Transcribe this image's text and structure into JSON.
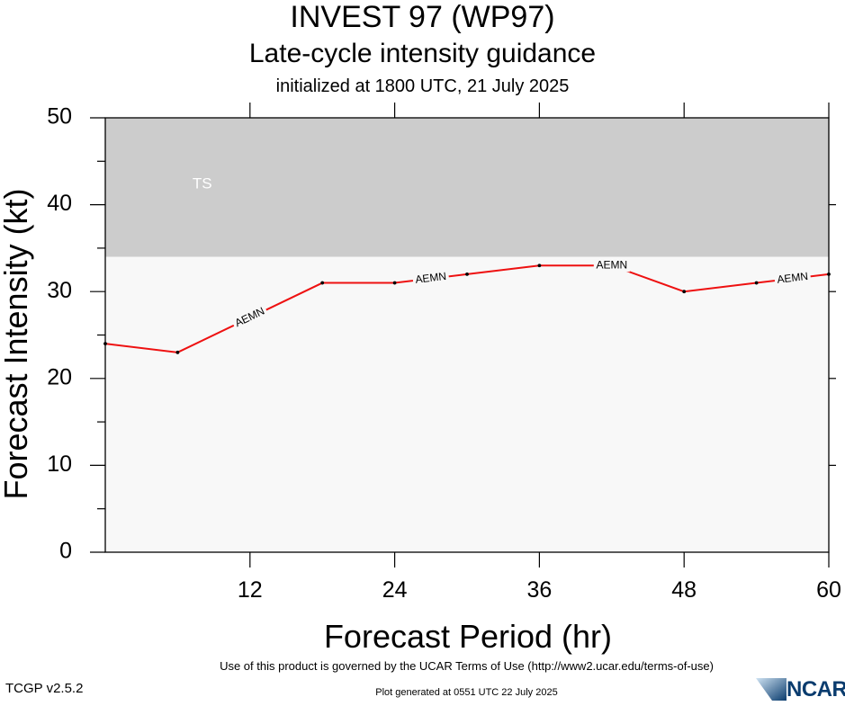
{
  "header": {
    "title": "INVEST 97 (WP97)",
    "subtitle": "Late-cycle intensity guidance",
    "initialized": "initialized at 1800 UTC, 21 July 2025"
  },
  "footer": {
    "terms": "Use of this product is governed by the UCAR Terms of Use (http://www2.ucar.edu/terms-of-use)",
    "version": "TCGP v2.5.2",
    "generated": "Plot generated at 0551 UTC   22 July 2025",
    "logo_text": "NCAR"
  },
  "chart_data": {
    "type": "line",
    "xlabel": "Forecast Period (hr)",
    "ylabel": "Forecast Intensity (kt)",
    "xlim": [
      0,
      60
    ],
    "ylim": [
      0,
      50
    ],
    "x_ticks": [
      12,
      24,
      36,
      48,
      60
    ],
    "y_ticks": [
      0,
      10,
      20,
      30,
      40,
      50
    ],
    "bands": [
      {
        "label": "TS",
        "from": 34,
        "to": 50,
        "color": "#cccccc"
      },
      {
        "label": "",
        "from": 0,
        "to": 34,
        "color": "#f8f8f8"
      }
    ],
    "series": [
      {
        "name": "AEMN",
        "color": "#ee1111",
        "x": [
          0,
          6,
          12,
          18,
          24,
          30,
          36,
          42,
          48,
          54,
          60
        ],
        "y": [
          24,
          23,
          27,
          31,
          31,
          32,
          33,
          33,
          30,
          31,
          32
        ],
        "label_positions": [
          12,
          27,
          42,
          57
        ]
      }
    ]
  }
}
